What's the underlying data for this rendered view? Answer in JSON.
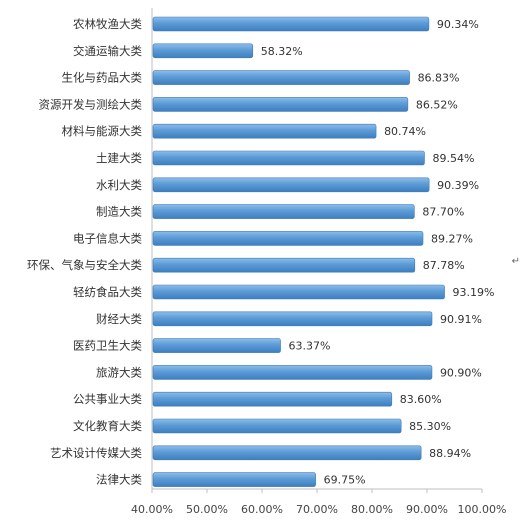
{
  "chart_data": {
    "type": "bar",
    "orientation": "horizontal",
    "categories": [
      "农林牧渔大类",
      "交通运输大类",
      "生化与药品大类",
      "资源开发与测绘大类",
      "材料与能源大类",
      "土建大类",
      "水利大类",
      "制造大类",
      "电子信息大类",
      "环保、气象与安全大类",
      "轻纺食品大类",
      "财经大类",
      "医药卫生大类",
      "旅游大类",
      "公共事业大类",
      "文化教育大类",
      "艺术设计传媒大类",
      "法律大类"
    ],
    "values": [
      90.34,
      58.32,
      86.83,
      86.52,
      80.74,
      89.54,
      90.39,
      87.7,
      89.27,
      87.78,
      93.19,
      90.91,
      63.37,
      90.9,
      83.6,
      85.3,
      88.94,
      69.75
    ],
    "value_labels": [
      "90.34%",
      "58.32%",
      "86.83%",
      "86.52%",
      "80.74%",
      "89.54%",
      "90.39%",
      "87.70%",
      "89.27%",
      "87.78%",
      "93.19%",
      "90.91%",
      "63.37%",
      "90.90%",
      "83.60%",
      "85.30%",
      "88.94%",
      "69.75%"
    ],
    "xlim": [
      40,
      100
    ],
    "x_ticks": [
      "40.00%",
      "50.00%",
      "60.00%",
      "70.00%",
      "80.00%",
      "90.00%",
      "100.00%"
    ],
    "grid": false,
    "legend": "none",
    "title": "",
    "xlabel": "",
    "ylabel": "",
    "bar_color": "#5B9BD5",
    "bar_edge_color": "#3E7CB8"
  },
  "side_mark": "↵"
}
